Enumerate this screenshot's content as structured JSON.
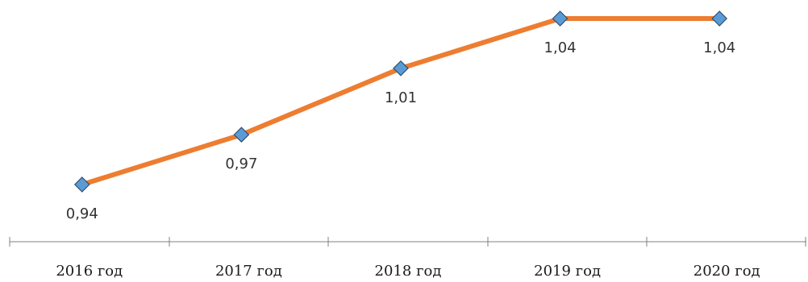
{
  "chart_data": {
    "type": "line",
    "categories": [
      "2016 год",
      "2017 год",
      "2018 год",
      "2019 год",
      "2020 год"
    ],
    "series": [
      {
        "values": [
          0.94,
          0.97,
          1.01,
          1.04,
          1.04
        ],
        "labels": [
          "0,94",
          "0,97",
          "1,01",
          "1,04",
          "1,04"
        ]
      }
    ],
    "title": "",
    "xlabel": "",
    "ylabel": "",
    "ylim": [
      0.9,
      1.04
    ],
    "grid": false,
    "legend": "none",
    "colors": {
      "line": "#ED7D31",
      "marker_fill": "#5B9BD5",
      "marker_stroke": "#2F4F6F",
      "axis": "#808080"
    }
  }
}
